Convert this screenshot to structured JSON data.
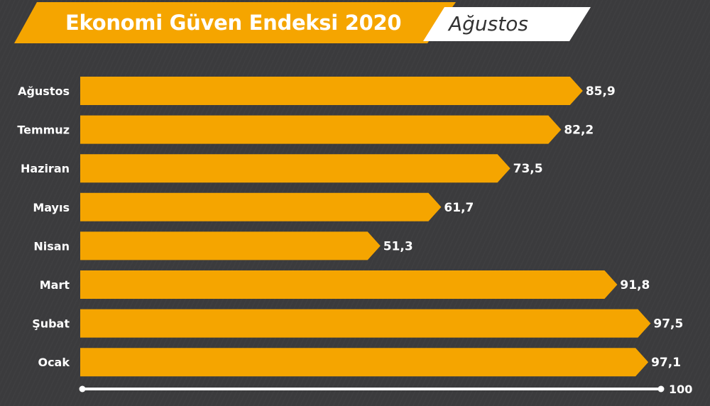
{
  "header": {
    "title": "Ekonomi Güven Endeksi 2020",
    "month": "Ağustos"
  },
  "colors": {
    "background": "#3b3b3d",
    "accent": "#f5a500",
    "text": "#ffffff"
  },
  "chart_data": {
    "type": "bar",
    "orientation": "horizontal",
    "title": "Ekonomi Güven Endeksi 2020",
    "categories": [
      "Ağustos",
      "Temmuz",
      "Haziran",
      "Mayıs",
      "Nisan",
      "Mart",
      "Şubat",
      "Ocak"
    ],
    "values": [
      85.9,
      82.2,
      73.5,
      61.7,
      51.3,
      91.8,
      97.5,
      97.1
    ],
    "value_labels": [
      "85,9",
      "82,2",
      "73,5",
      "61,7",
      "51,3",
      "91,8",
      "97,5",
      "97,1"
    ],
    "xlim": [
      0,
      100
    ],
    "axis_max_label": "100",
    "grid": false,
    "legend": "none"
  }
}
